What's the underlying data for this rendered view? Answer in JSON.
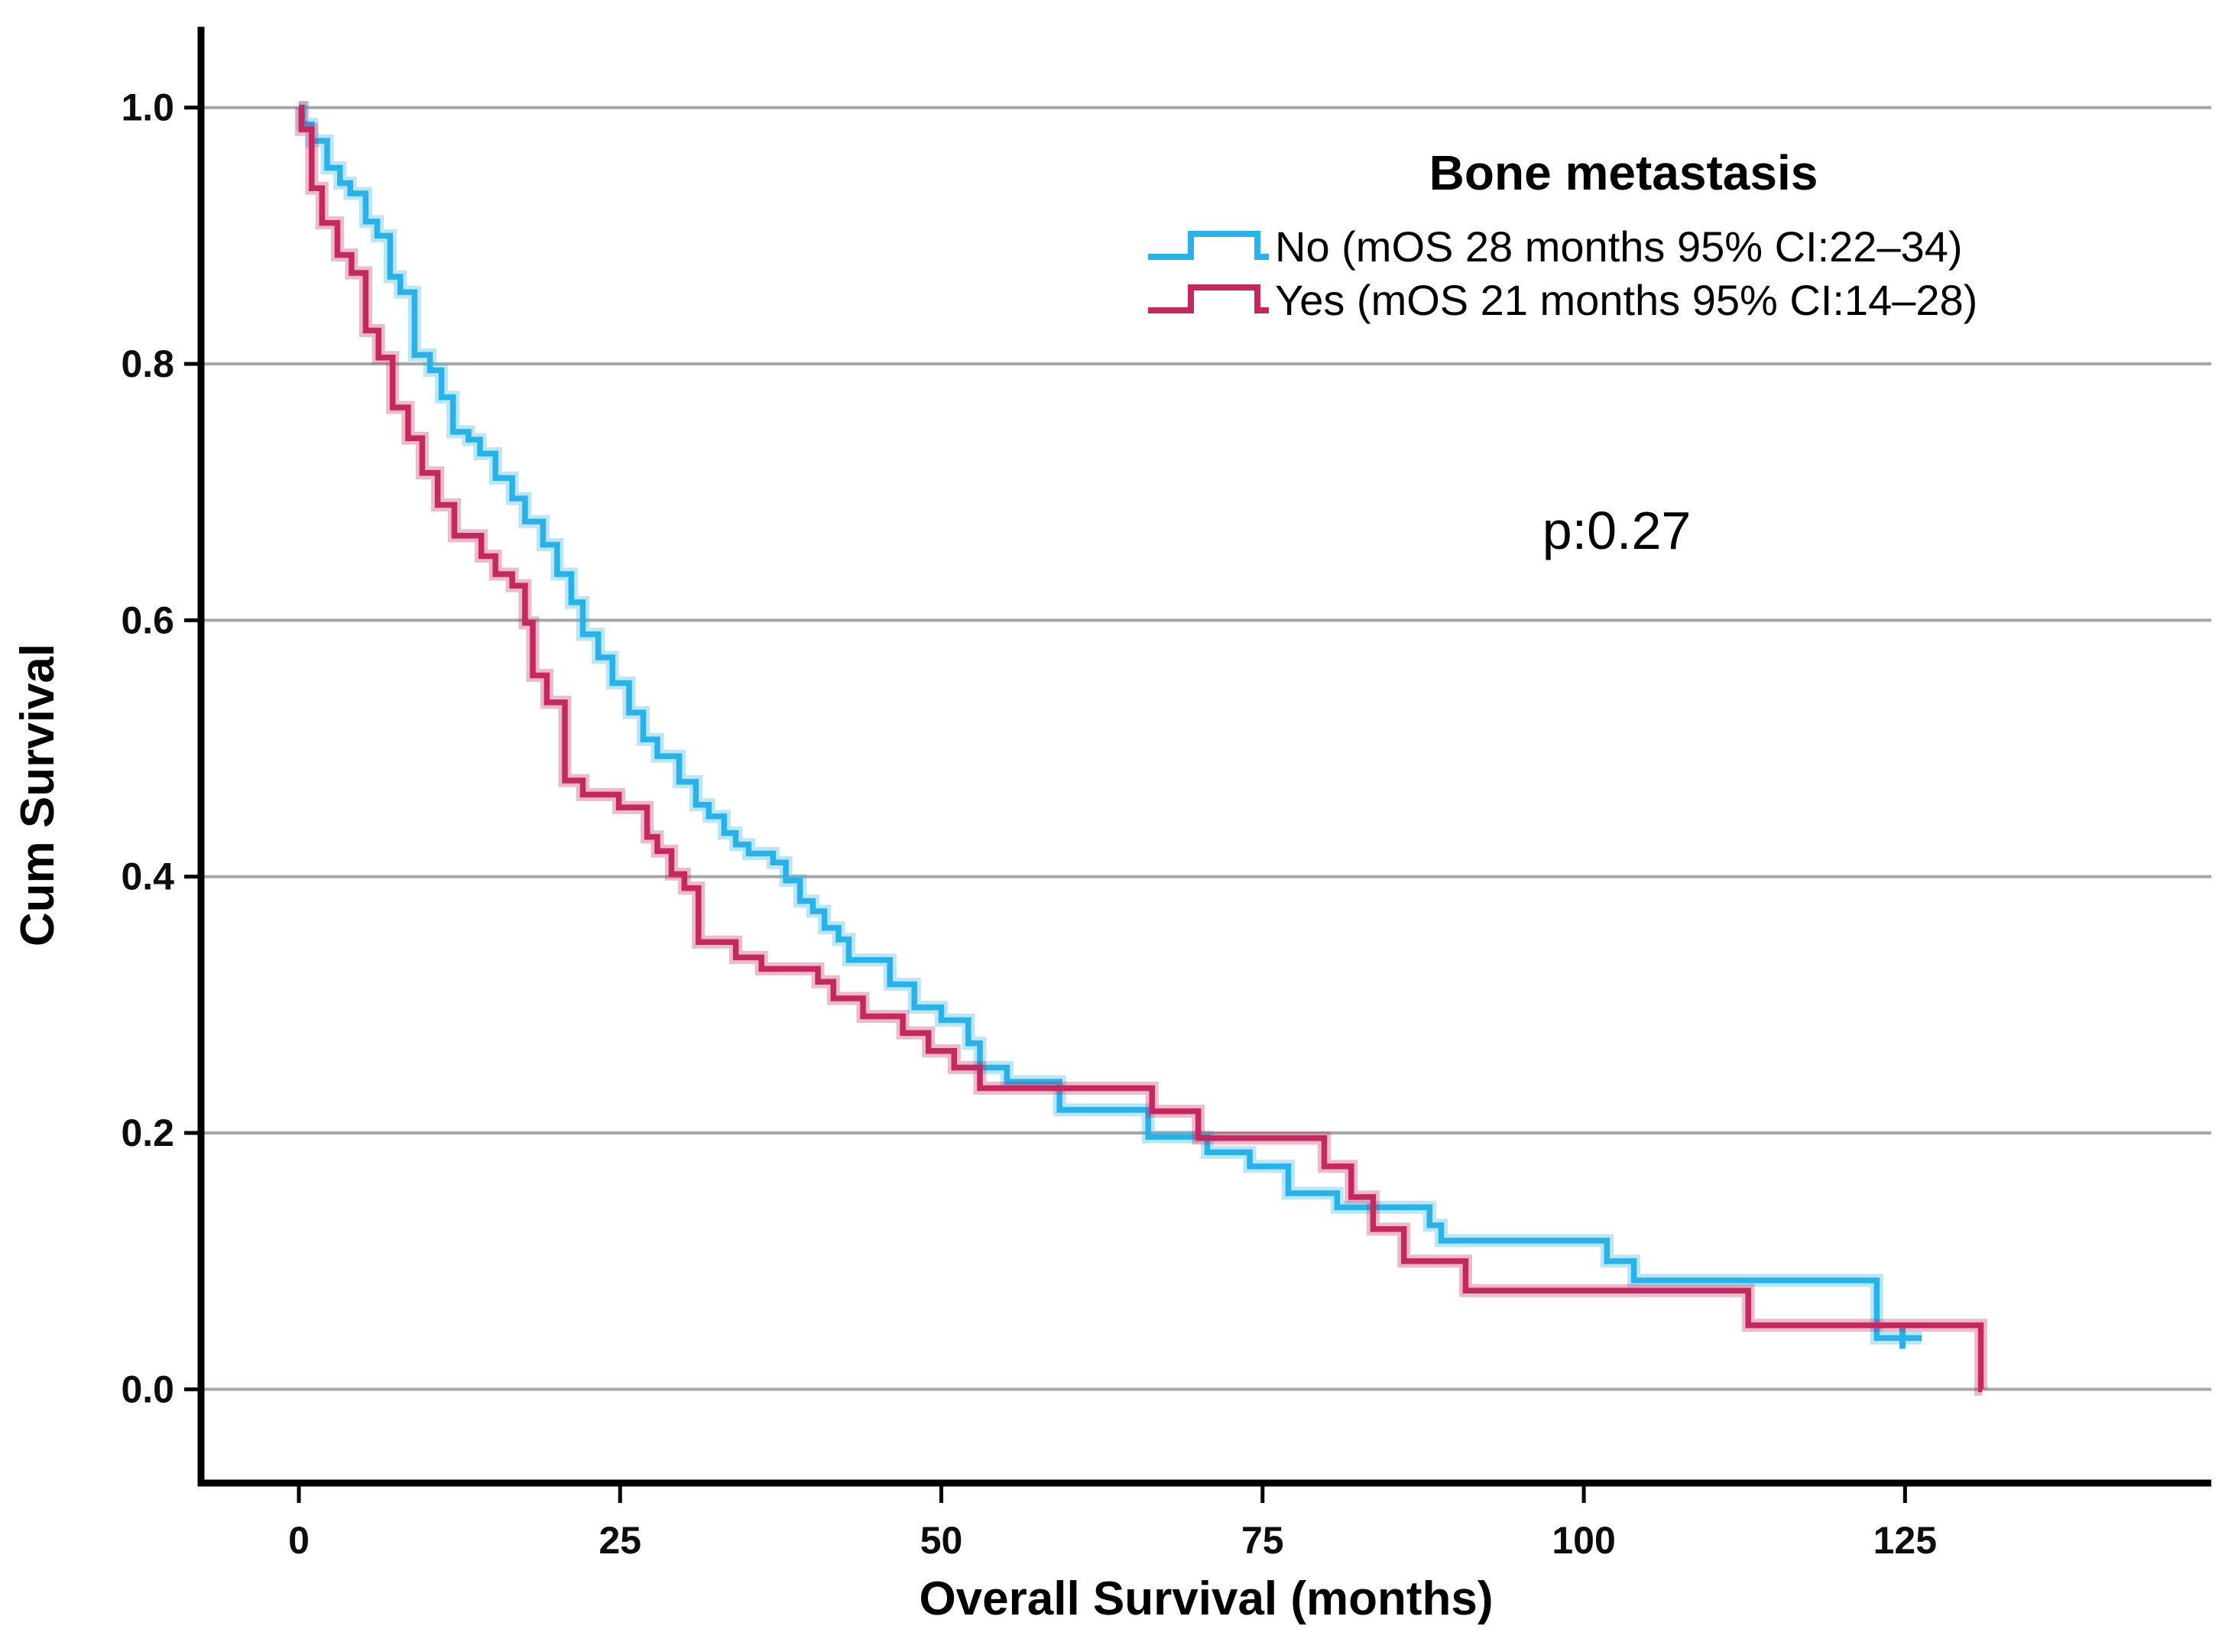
{
  "annotation": {
    "p_value": "p:0.27"
  },
  "legend": {
    "title": "Bone metastasis",
    "items": [
      {
        "label": "No  (mOS 28 months 95% CI:22–34)",
        "series": "No"
      },
      {
        "label": "Yes  (mOS 21 months 95% CI:14–28)",
        "series": "Yes"
      }
    ]
  },
  "chart_data": {
    "type": "line",
    "subtype": "kaplan-meier-step",
    "title": "Bone metastasis",
    "xlabel": "Overall Survival (months)",
    "ylabel": "Cum Survival",
    "xlim": [
      0,
      148
    ],
    "ylim": [
      0.0,
      1.0
    ],
    "grid": "horizontal",
    "legend_position": "top-right",
    "x_ticks": [
      {
        "label": "0",
        "value": 0
      },
      {
        "label": "25",
        "value": 25
      },
      {
        "label": "50",
        "value": 50
      },
      {
        "label": "75",
        "value": 75
      },
      {
        "label": "100",
        "value": 100
      },
      {
        "label": "125",
        "value": 125
      }
    ],
    "y_ticks": [
      {
        "label": "1.0",
        "value": 1.0
      },
      {
        "label": "0.8",
        "value": 0.8
      },
      {
        "label": "0.6",
        "value": 0.6
      },
      {
        "label": "0.4",
        "value": 0.4
      },
      {
        "label": "0.2",
        "value": 0.2
      },
      {
        "label": "0.0",
        "value": 0.0
      }
    ],
    "series": [
      {
        "name": "No",
        "median_os_months": 28,
        "ci95": "22-34",
        "color": "#27b2ea",
        "end_time": 126.3,
        "censor": [
          124.8,
          0.04
        ],
        "points": [
          [
            0,
            1.0
          ],
          [
            0.3,
            0.987
          ],
          [
            1,
            0.974
          ],
          [
            2.2,
            0.953
          ],
          [
            3.2,
            0.941
          ],
          [
            4,
            0.933
          ],
          [
            5.2,
            0.911
          ],
          [
            6.1,
            0.9
          ],
          [
            7.1,
            0.868
          ],
          [
            7.9,
            0.856
          ],
          [
            9,
            0.807
          ],
          [
            10.2,
            0.795
          ],
          [
            11.1,
            0.774
          ],
          [
            12,
            0.747
          ],
          [
            13.2,
            0.741
          ],
          [
            14.1,
            0.73
          ],
          [
            15.3,
            0.711
          ],
          [
            16.6,
            0.695
          ],
          [
            17.6,
            0.677
          ],
          [
            19,
            0.659
          ],
          [
            20.1,
            0.636
          ],
          [
            21.2,
            0.614
          ],
          [
            22.1,
            0.589
          ],
          [
            23.3,
            0.571
          ],
          [
            24.4,
            0.551
          ],
          [
            25.7,
            0.528
          ],
          [
            26.8,
            0.507
          ],
          [
            27.9,
            0.494
          ],
          [
            29.6,
            0.474
          ],
          [
            30.9,
            0.456
          ],
          [
            31.9,
            0.447
          ],
          [
            33.1,
            0.434
          ],
          [
            34,
            0.425
          ],
          [
            35,
            0.418
          ],
          [
            36.9,
            0.411
          ],
          [
            37.9,
            0.397
          ],
          [
            39,
            0.381
          ],
          [
            40,
            0.373
          ],
          [
            40.9,
            0.36
          ],
          [
            42,
            0.351
          ],
          [
            42.8,
            0.335
          ],
          [
            46,
            0.316
          ],
          [
            47.9,
            0.298
          ],
          [
            50,
            0.288
          ],
          [
            52.1,
            0.27
          ],
          [
            53,
            0.251
          ],
          [
            55.1,
            0.24
          ],
          [
            59.2,
            0.218
          ],
          [
            66.1,
            0.197
          ],
          [
            70.7,
            0.185
          ],
          [
            74,
            0.174
          ],
          [
            77,
            0.153
          ],
          [
            80.8,
            0.142
          ],
          [
            88,
            0.128
          ],
          [
            88.9,
            0.116
          ],
          [
            101.8,
            0.1
          ],
          [
            103.9,
            0.085
          ],
          [
            122.8,
            0.04
          ]
        ]
      },
      {
        "name": "Yes",
        "median_os_months": 21,
        "ci95": "14-28",
        "color": "#c5285e",
        "end_time": 131.0,
        "censor": null,
        "points": [
          [
            0,
            1.0
          ],
          [
            0.2,
            0.983
          ],
          [
            1,
            0.937
          ],
          [
            1.8,
            0.91
          ],
          [
            3,
            0.885
          ],
          [
            4.1,
            0.871
          ],
          [
            5.2,
            0.826
          ],
          [
            6.2,
            0.805
          ],
          [
            7.3,
            0.766
          ],
          [
            8.5,
            0.742
          ],
          [
            9.6,
            0.715
          ],
          [
            10.8,
            0.69
          ],
          [
            12.1,
            0.666
          ],
          [
            14.2,
            0.65
          ],
          [
            15.3,
            0.636
          ],
          [
            16.6,
            0.627
          ],
          [
            17.6,
            0.598
          ],
          [
            18.2,
            0.557
          ],
          [
            19.3,
            0.536
          ],
          [
            20.7,
            0.475
          ],
          [
            22.1,
            0.464
          ],
          [
            24.9,
            0.454
          ],
          [
            27.1,
            0.431
          ],
          [
            27.9,
            0.42
          ],
          [
            29,
            0.402
          ],
          [
            30,
            0.391
          ],
          [
            31.1,
            0.349
          ],
          [
            34,
            0.337
          ],
          [
            36,
            0.328
          ],
          [
            40.4,
            0.318
          ],
          [
            41.6,
            0.305
          ],
          [
            43.9,
            0.291
          ],
          [
            47,
            0.278
          ],
          [
            49,
            0.264
          ],
          [
            51,
            0.251
          ],
          [
            53,
            0.235
          ],
          [
            66.4,
            0.217
          ],
          [
            70,
            0.196
          ],
          [
            79.8,
            0.174
          ],
          [
            81.9,
            0.15
          ],
          [
            83.6,
            0.125
          ],
          [
            86,
            0.1
          ],
          [
            90.8,
            0.077
          ],
          [
            112.8,
            0.05
          ],
          [
            130.9,
            0.0
          ]
        ]
      }
    ],
    "colors": {
      "grid": "#a7a7a7",
      "axis": "#000000",
      "background": "#ffffff",
      "series_no": "#27b2ea",
      "series_yes": "#c5285e"
    }
  }
}
